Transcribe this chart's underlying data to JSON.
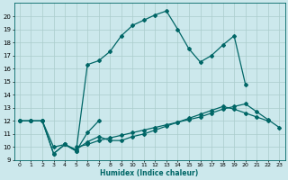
{
  "xlabel": "Humidex (Indice chaleur)",
  "bg_color": "#cce8ec",
  "grid_color": "#aacccc",
  "line_color": "#006666",
  "xlim": [
    -0.5,
    23.5
  ],
  "ylim": [
    9,
    21
  ],
  "xticks": [
    0,
    1,
    2,
    3,
    4,
    5,
    6,
    7,
    8,
    9,
    10,
    11,
    12,
    13,
    14,
    15,
    16,
    17,
    18,
    19,
    20,
    21,
    22,
    23
  ],
  "yticks": [
    9,
    10,
    11,
    12,
    13,
    14,
    15,
    16,
    17,
    18,
    19,
    20
  ],
  "line1_x": [
    0,
    1,
    2,
    3,
    4,
    5,
    6,
    7
  ],
  "line1_y": [
    12,
    12,
    12,
    9.5,
    10.2,
    9.7,
    11.1,
    12.0
  ],
  "line2_x": [
    0,
    1,
    2,
    3,
    4,
    5,
    6,
    7,
    8,
    9,
    10,
    11,
    12,
    13,
    14,
    15,
    16,
    17,
    18,
    19,
    20,
    21,
    22
  ],
  "line2_y": [
    12,
    12,
    12,
    10.0,
    10.2,
    9.8,
    10.4,
    10.8,
    10.5,
    10.5,
    10.8,
    11.0,
    11.3,
    11.6,
    11.9,
    12.2,
    12.5,
    12.8,
    13.1,
    12.9,
    12.6,
    12.3,
    12.0
  ],
  "line3_x": [
    0,
    1,
    2,
    3,
    4,
    5,
    6,
    7,
    8,
    9,
    10,
    11,
    12,
    13,
    14,
    15,
    16,
    17,
    18,
    19,
    20
  ],
  "line3_y": [
    12,
    12,
    12,
    9.5,
    10.2,
    9.7,
    16.3,
    16.6,
    17.3,
    18.5,
    19.3,
    19.7,
    20.1,
    20.4,
    19.0,
    17.5,
    16.5,
    17.0,
    17.8,
    18.5,
    14.8
  ],
  "line4_x": [
    5,
    6,
    7,
    8,
    9,
    10,
    11,
    12,
    13,
    14,
    15,
    16,
    17,
    18,
    19,
    20,
    21,
    22,
    23
  ],
  "line4_y": [
    10.0,
    10.2,
    10.5,
    10.7,
    10.9,
    11.1,
    11.3,
    11.5,
    11.7,
    11.9,
    12.1,
    12.3,
    12.6,
    12.9,
    13.1,
    13.3,
    12.7,
    12.1,
    11.5
  ]
}
